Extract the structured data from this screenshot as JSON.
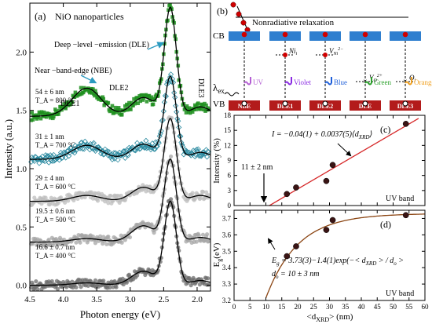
{
  "colors": {
    "green": "#1f8f1f",
    "teal": "#2b8aa0",
    "gray_light": "#bdbdbd",
    "gray_mid": "#a6a6a6",
    "gray_dark": "#6e6e6e",
    "fit_red": "#d62728",
    "fit_brown": "#8b4513",
    "band_blue": "#2f7fcf",
    "band_red": "#b31b1b",
    "dot_red": "#d00000",
    "dot_dark": "#3a1414",
    "uv_purple": "#b45fd3",
    "violet": "#8a2be2",
    "blue": "#1f5fd9",
    "green_arrow": "#2aa02a",
    "orange": "#f0a020"
  },
  "chart_data": [
    {
      "type": "line",
      "panel_label": "(a)",
      "title": "NiO nanoparticles",
      "xlabel": "Photon energy (eV)",
      "ylabel": "Intensity (a.u.)",
      "xlim": [
        4.5,
        1.8
      ],
      "ylim": [
        -0.05,
        2.42
      ],
      "x_inverted": true,
      "xticks": [
        "4.5",
        "4.0",
        "3.5",
        "3.0",
        "2.5",
        "2.0"
      ],
      "xtick_values": [
        4.5,
        4.0,
        3.5,
        3.0,
        2.5,
        2.0
      ],
      "yticks": [
        "0.0",
        "0.5",
        "1.0",
        "1.5",
        "2.0"
      ],
      "ytick_values": [
        0.0,
        0.5,
        1.0,
        1.5,
        2.0
      ],
      "annotations": {
        "dle": "Deep −level −emission (DLE)",
        "nbe": "Near −band-edge (NBE)",
        "dle1": "DLE1",
        "dle2": "DLE2",
        "dle3": "DLE3"
      },
      "series": [
        {
          "name": "54 ± 6 nm",
          "temp": "T_A = 800 °C",
          "offset": 1.45,
          "amplitude": 0.92,
          "nbe": 0.24,
          "shoulder": 0.16,
          "tail": 0.08,
          "color_key": "green",
          "marker": "square"
        },
        {
          "name": "31 ± 1 nm",
          "temp": "T_A = 700 °C",
          "offset": 1.08,
          "amplitude": 0.7,
          "nbe": 0.12,
          "shoulder": 0.13,
          "tail": 0.06,
          "color_key": "teal",
          "marker": "diamond"
        },
        {
          "name": "29 ± 4 nm",
          "temp": "T_A = 600 °C",
          "offset": 0.72,
          "amplitude": 0.7,
          "nbe": 0.05,
          "shoulder": 0.12,
          "tail": 0.05,
          "color_key": "gray_light",
          "marker": "circle"
        },
        {
          "name": "19.5 ± 0.6 nm",
          "temp": "T_A = 500 °C",
          "offset": 0.37,
          "amplitude": 0.7,
          "nbe": 0.03,
          "shoulder": 0.14,
          "tail": 0.04,
          "color_key": "gray_mid",
          "marker": "circle"
        },
        {
          "name": "16.6 ± 0.7 nm",
          "temp": "T_A = 400 °C",
          "offset": 0.0,
          "amplitude": 0.71,
          "nbe": 0.02,
          "shoulder": 0.12,
          "tail": 0.04,
          "color_key": "gray_dark",
          "marker": "circle"
        }
      ]
    },
    {
      "type": "scatter",
      "panel_label": "(c)",
      "xlabel": "",
      "ylabel": "Intensity (%)",
      "xlim": [
        0,
        60
      ],
      "ylim": [
        0,
        18
      ],
      "yticks": [
        "0",
        "3",
        "6",
        "9",
        "12",
        "15",
        "18"
      ],
      "ytick_values": [
        0,
        3,
        6,
        9,
        12,
        15,
        18
      ],
      "x": [
        16.6,
        19.5,
        29,
        31,
        54
      ],
      "y": [
        2.3,
        3.6,
        4.9,
        8.1,
        16.3
      ],
      "fit": {
        "intercept": -0.04,
        "slope": 0.37,
        "equation": "I = −0.04(1) + 0.0037(5)⟨d",
        "equation_sub": "XRD",
        "equation_end": "⟩"
      },
      "threshold_label": "11 ± 2 nm",
      "threshold_x": 11,
      "band_label": "UV band"
    },
    {
      "type": "scatter",
      "panel_label": "(d)",
      "xlabel": "<d",
      "xlabel_sub": "XRD",
      "xlabel_end": "> (nm)",
      "ylabel": "E",
      "ylabel_sub": "g",
      "ylabel_end": "(eV)",
      "xlim": [
        0,
        60
      ],
      "ylim": [
        3.2,
        3.75
      ],
      "xticks": [
        "0",
        "5",
        "10",
        "15",
        "20",
        "25",
        "30",
        "35",
        "40",
        "45",
        "50",
        "55",
        "60"
      ],
      "xtick_values": [
        0,
        5,
        10,
        15,
        20,
        25,
        30,
        35,
        40,
        45,
        50,
        55,
        60
      ],
      "yticks": [
        "3.2",
        "3.3",
        "3.4",
        "3.5",
        "3.6",
        "3.7"
      ],
      "ytick_values": [
        3.2,
        3.3,
        3.4,
        3.5,
        3.6,
        3.7
      ],
      "x": [
        16.6,
        19.5,
        29,
        31,
        54
      ],
      "y": [
        3.47,
        3.53,
        3.63,
        3.69,
        3.72
      ],
      "fit": {
        "A": 3.73,
        "B": 1.4,
        "d0": 10,
        "equation": "E",
        "equation_sub": "g",
        "equation_mid": " = 3.73(3)−1.4(1)exp(−< d",
        "equation_sub2": "XRD",
        "equation_end": " > / d",
        "equation_sub3": "o",
        "equation_end2": " >",
        "d0_label": "d",
        "d0_sub": "o",
        "d0_end": " = 10 ± 3 nm"
      },
      "band_label": "UV band"
    }
  ],
  "diagram_b": {
    "panel_label": "(b)",
    "nonradiative": "Nonradiative relaxation",
    "cb": "CB",
    "vb": "VB",
    "lambda": "λ",
    "lambda_sub": "ex",
    "bands": [
      {
        "vb_label": "NBE",
        "emission": "UV",
        "color_key": "uv_purple",
        "level": ""
      },
      {
        "vb_label": "DLE1",
        "emission": "Violet",
        "color_key": "violet",
        "level": "Ni",
        "level_sub": "i"
      },
      {
        "vb_label": "DLE2",
        "emission": "Blue",
        "color_key": "blue",
        "level": "V",
        "level_sub": "Ni",
        "level_sup": "2−"
      },
      {
        "vb_label": "DLE",
        "emission": "Green",
        "color_key": "green_arrow",
        "level": "V",
        "level_sub": "O",
        "level_sup": "2+"
      },
      {
        "vb_label": "DLE3",
        "emission": "Orange",
        "color_key": "orange",
        "level": "O",
        "level_sub": "i"
      }
    ]
  }
}
